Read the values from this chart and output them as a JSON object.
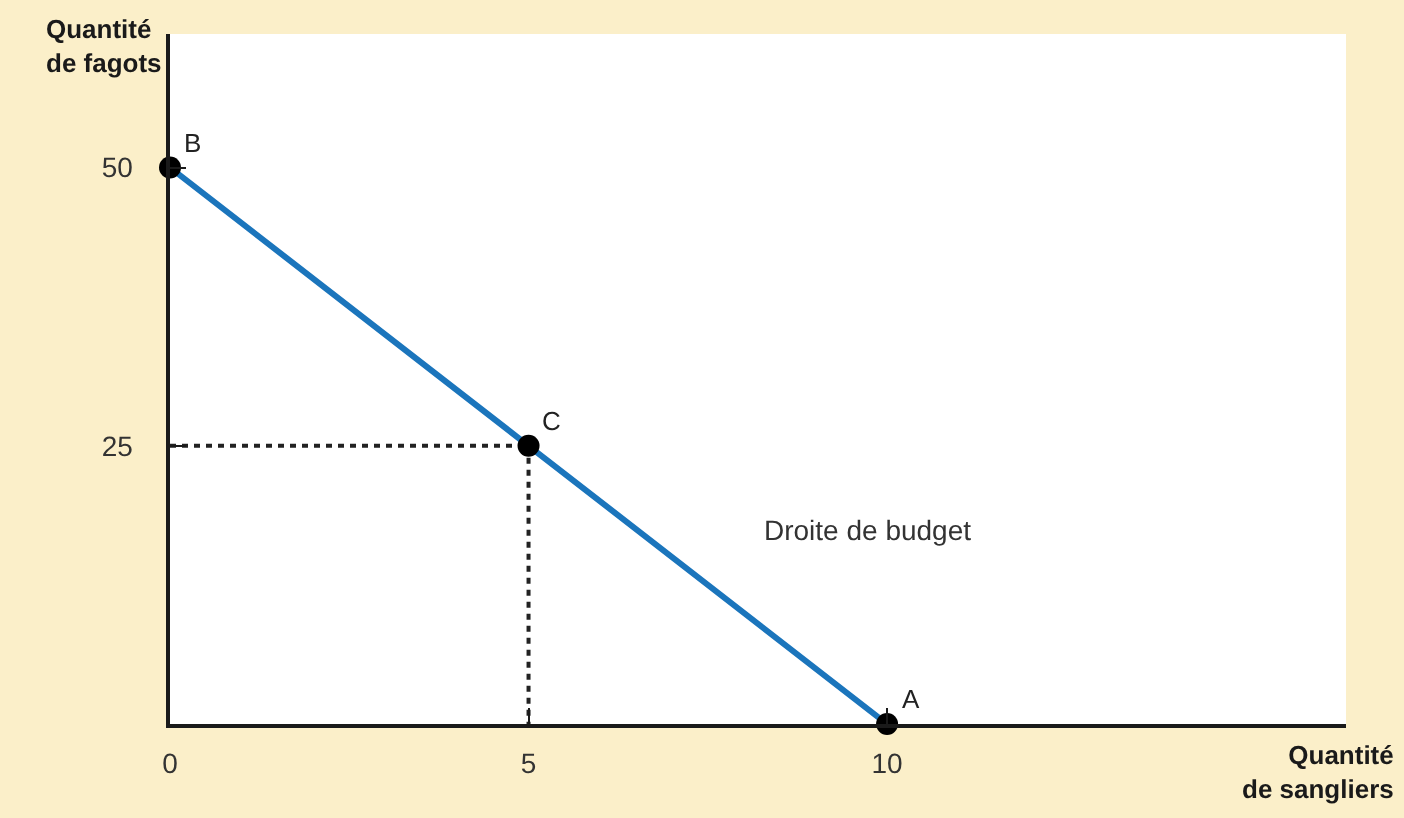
{
  "chart_data": {
    "type": "line",
    "xlabel": "Quantité\nde sangliers",
    "ylabel": "Quantité\nde fagots",
    "xlim": [
      0,
      16.4
    ],
    "ylim": [
      0,
      62
    ],
    "xticks": [
      0,
      5,
      10
    ],
    "yticks": [
      25,
      50
    ],
    "series": [
      {
        "name": "Droite de budget",
        "color": "#1b75bc",
        "line_style": "solid",
        "x": [
          0,
          5,
          10
        ],
        "values": [
          50,
          25,
          0
        ]
      },
      {
        "color": "#222222",
        "line_style": "dotted",
        "x": [
          0,
          5
        ],
        "values": [
          25,
          25
        ]
      },
      {
        "color": "#222222",
        "line_style": "dotted",
        "x": [
          5,
          5
        ],
        "values": [
          25,
          0
        ]
      },
      {
        "type": "scatter",
        "color": "#000000",
        "marker": "circle",
        "x": [
          0,
          5,
          10
        ],
        "values": [
          50,
          25,
          0
        ]
      }
    ],
    "annotations": [
      {
        "text": "B",
        "x": 0,
        "y": 50
      },
      {
        "text": "C",
        "x": 5,
        "y": 25
      },
      {
        "text": "A",
        "x": 10,
        "y": 0
      }
    ]
  }
}
